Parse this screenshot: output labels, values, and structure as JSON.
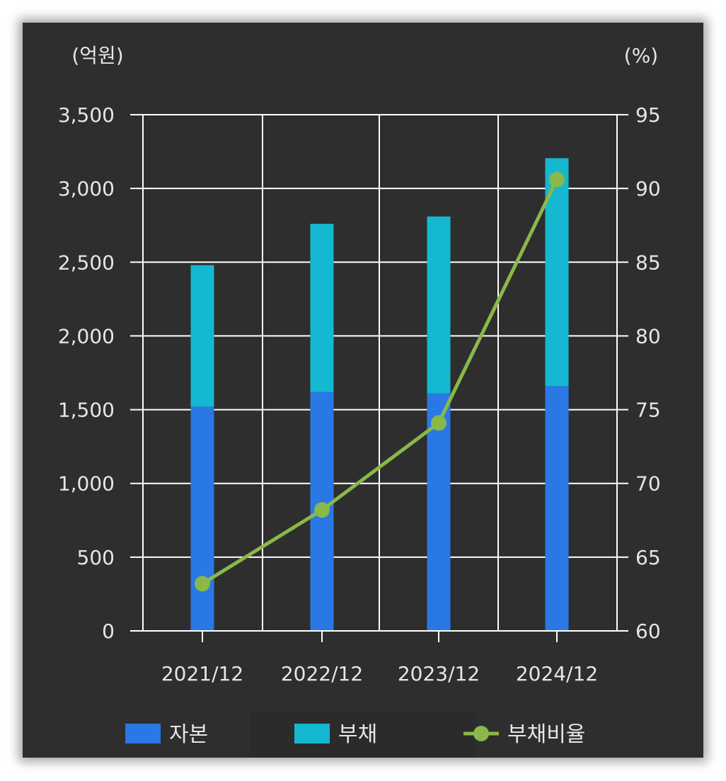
{
  "chart_data": {
    "type": "bar",
    "categories": [
      "2021/12",
      "2022/12",
      "2023/12",
      "2024/12"
    ],
    "series": [
      {
        "name": "자본",
        "kind": "bar",
        "stack": "total",
        "axis": "left",
        "color": "#2a78e4",
        "values": [
          1520,
          1620,
          1610,
          1660
        ]
      },
      {
        "name": "부채",
        "kind": "bar",
        "stack": "total",
        "axis": "left",
        "color": "#14b8d0",
        "values": [
          960,
          1140,
          1200,
          1545
        ]
      },
      {
        "name": "부채비율",
        "kind": "line",
        "axis": "right",
        "color": "#8ab84a",
        "values": [
          63.2,
          68.2,
          74.1,
          90.6
        ]
      }
    ],
    "y_left": {
      "label": "(억원)",
      "ylim": [
        0,
        3500
      ],
      "ticks": [
        0,
        500,
        1000,
        1500,
        2000,
        2500,
        3000,
        3500
      ],
      "tick_labels": [
        "0",
        "500",
        "1,000",
        "1,500",
        "2,000",
        "2,500",
        "3,000",
        "3,500"
      ]
    },
    "y_right": {
      "label": "(%)",
      "ylim": [
        60,
        95
      ],
      "ticks": [
        60,
        65,
        70,
        75,
        80,
        85,
        90,
        95
      ],
      "tick_labels": [
        "60",
        "65",
        "70",
        "75",
        "80",
        "85",
        "90",
        "95"
      ]
    },
    "grid": true,
    "legend_position": "bottom",
    "legend": [
      {
        "label": "자본",
        "marker": "box",
        "color": "#2a78e4"
      },
      {
        "label": "부채",
        "marker": "box",
        "color": "#14b8d0"
      },
      {
        "label": "부채비율",
        "marker": "line-dot",
        "color": "#8ab84a"
      }
    ],
    "colors": {
      "background": "#2e2e2e",
      "grid": "#ffffff",
      "text": "#e6e6e6"
    }
  }
}
